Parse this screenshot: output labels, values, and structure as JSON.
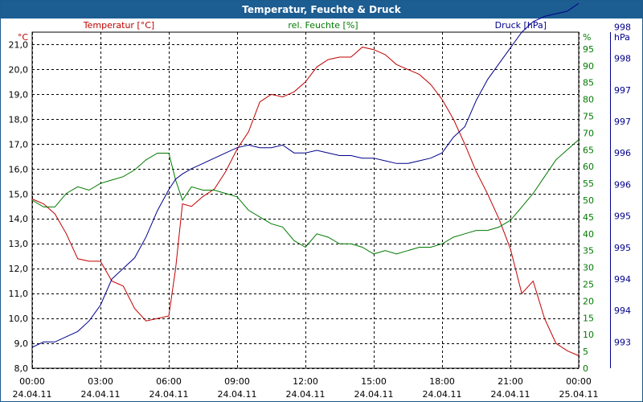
{
  "window": {
    "title": "Temperatur, Feuchte & Druck"
  },
  "chart_data": {
    "type": "line",
    "title": "Temperatur, Feuchte & Druck",
    "x_ticks": [
      {
        "time": "00:00",
        "date": "24.04.11"
      },
      {
        "time": "03:00",
        "date": "24.04.11"
      },
      {
        "time": "06:00",
        "date": "24.04.11"
      },
      {
        "time": "09:00",
        "date": "24.04.11"
      },
      {
        "time": "12:00",
        "date": "24.04.11"
      },
      {
        "time": "15:00",
        "date": "24.04.11"
      },
      {
        "time": "18:00",
        "date": "24.04.11"
      },
      {
        "time": "21:00",
        "date": "24.04.11"
      },
      {
        "time": "00:00",
        "date": "25.04.11"
      }
    ],
    "xlim_hours": [
      0,
      24
    ],
    "axes": {
      "temperature": {
        "unit": "°C",
        "ylim": [
          8,
          21.5
        ],
        "ticks": [
          "8,0",
          "9,0",
          "10,0",
          "11,0",
          "12,0",
          "13,0",
          "14,0",
          "15,0",
          "16,0",
          "17,0",
          "18,0",
          "19,0",
          "20,0",
          "21,0"
        ],
        "tick_values": [
          8,
          9,
          10,
          11,
          12,
          13,
          14,
          15,
          16,
          17,
          18,
          19,
          20,
          21
        ]
      },
      "humidity": {
        "unit": "%",
        "ylim": [
          0,
          100
        ],
        "ticks": [
          "0",
          "5",
          "10",
          "15",
          "20",
          "25",
          "30",
          "35",
          "40",
          "45",
          "50",
          "55",
          "60",
          "65",
          "70",
          "75",
          "80",
          "85",
          "90",
          "95"
        ],
        "tick_values": [
          0,
          5,
          10,
          15,
          20,
          25,
          30,
          35,
          40,
          45,
          50,
          55,
          60,
          65,
          70,
          75,
          80,
          85,
          90,
          95
        ]
      },
      "pressure": {
        "unit": "hPa",
        "ylim": [
          992.5,
          998.9
        ],
        "ticks": [
          "993",
          "994",
          "994",
          "995",
          "995",
          "996",
          "996",
          "997",
          "997",
          "998",
          "998"
        ],
        "tick_values": [
          993,
          993.6,
          994.2,
          994.8,
          995.4,
          996,
          996.6,
          997.2,
          997.8,
          998.4,
          999
        ]
      }
    },
    "series": [
      {
        "name": "Temperatur [°C]",
        "color": "#c00000",
        "axis": "temperature",
        "x": [
          0,
          0.5,
          1,
          1.5,
          2,
          2.5,
          3,
          3.5,
          4,
          4.5,
          5,
          5.5,
          6,
          6.3,
          6.6,
          7,
          7.5,
          8,
          8.5,
          9,
          9.5,
          10,
          10.5,
          11,
          11.5,
          12,
          12.5,
          13,
          13.5,
          14,
          14.5,
          15,
          15.5,
          16,
          16.5,
          17,
          17.5,
          18,
          18.5,
          19,
          19.5,
          20,
          20.5,
          21,
          21.5,
          22,
          22.5,
          23,
          23.5,
          24
        ],
        "values": [
          14.8,
          14.6,
          14.2,
          13.4,
          12.4,
          12.3,
          12.3,
          11.5,
          11.3,
          10.4,
          9.9,
          10.0,
          10.1,
          12.0,
          14.6,
          14.5,
          14.9,
          15.2,
          15.9,
          16.8,
          17.5,
          18.7,
          19.0,
          18.9,
          19.1,
          19.5,
          20.1,
          20.4,
          20.5,
          20.5,
          20.9,
          20.8,
          20.6,
          20.2,
          20.0,
          19.8,
          19.4,
          18.8,
          18.0,
          17.0,
          15.9,
          15.0,
          14.0,
          12.8,
          11.0,
          11.5,
          10.0,
          9.0,
          8.7,
          8.5
        ]
      },
      {
        "name": "rel. Feuchte [%]",
        "color": "#007a00",
        "axis": "humidity",
        "x": [
          0,
          0.5,
          1,
          1.5,
          2,
          2.5,
          3,
          3.5,
          4,
          4.5,
          5,
          5.5,
          6,
          6.3,
          6.6,
          7,
          7.5,
          8,
          8.5,
          9,
          9.5,
          10,
          10.5,
          11,
          11.5,
          12,
          12.5,
          13,
          13.5,
          14,
          14.5,
          15,
          15.5,
          16,
          16.5,
          17,
          17.5,
          18,
          18.5,
          19,
          19.5,
          20,
          20.5,
          21,
          21.5,
          22,
          22.5,
          23,
          23.5,
          24
        ],
        "values": [
          50,
          48,
          48,
          52,
          54,
          53,
          55,
          56,
          57,
          59,
          62,
          64,
          64,
          56,
          50,
          54,
          53,
          53,
          52,
          51,
          47,
          45,
          43,
          42,
          38,
          36,
          40,
          39,
          37,
          37,
          36,
          34,
          35,
          34,
          35,
          36,
          36,
          37,
          39,
          40,
          41,
          41,
          42,
          44,
          48,
          52,
          57,
          62,
          65,
          68
        ]
      },
      {
        "name": "Druck [hPa]",
        "color": "#00008b",
        "axis": "pressure",
        "x": [
          0,
          0.5,
          1,
          1.5,
          2,
          2.5,
          3,
          3.5,
          4,
          4.5,
          5,
          5.5,
          6,
          6.3,
          6.6,
          7,
          7.5,
          8,
          8.5,
          9,
          9.5,
          10,
          10.5,
          11,
          11.5,
          12,
          12.5,
          13,
          13.5,
          14,
          14.5,
          15,
          15.5,
          16,
          16.5,
          17,
          17.5,
          18,
          18.5,
          19,
          19.5,
          20,
          20.5,
          21,
          21.5,
          22,
          22.5,
          23,
          23.5,
          24
        ],
        "values": [
          992.9,
          993.0,
          993.0,
          993.1,
          993.2,
          993.4,
          993.7,
          994.2,
          994.4,
          994.6,
          995.0,
          995.5,
          995.9,
          996.1,
          996.2,
          996.3,
          996.4,
          996.5,
          996.6,
          996.7,
          996.75,
          996.7,
          996.7,
          996.75,
          996.6,
          996.6,
          996.65,
          996.6,
          996.55,
          996.55,
          996.5,
          996.5,
          996.45,
          996.4,
          996.4,
          996.45,
          996.5,
          996.6,
          996.9,
          997.1,
          997.6,
          998.0,
          998.3,
          998.6,
          998.9,
          999.1,
          999.2,
          999.25,
          999.3,
          999.45
        ]
      }
    ],
    "legend": [
      "Temperatur [°C]",
      "rel. Feuchte [%]",
      "Druck [hPa]"
    ],
    "grid": true
  }
}
